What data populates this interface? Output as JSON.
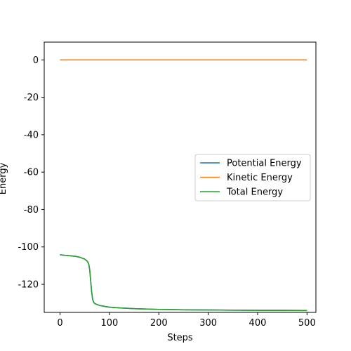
{
  "chart_data": {
    "type": "line",
    "title": "",
    "xlabel": "Steps",
    "ylabel": "Energy",
    "xlim": [
      -32,
      518
    ],
    "ylim": [
      -135,
      9.5
    ],
    "xticks": [
      0,
      100,
      200,
      300,
      400,
      500
    ],
    "yticks": [
      0,
      -20,
      -40,
      -60,
      -80,
      -100,
      -120
    ],
    "grid": false,
    "legend_position": "center-right",
    "series": [
      {
        "name": "Potential Energy",
        "color": "#1f77b4",
        "x": [
          0,
          10,
          20,
          30,
          40,
          50,
          55,
          58,
          60,
          62,
          64,
          66,
          68,
          70,
          75,
          80,
          90,
          100,
          120,
          150,
          200,
          250,
          300,
          350,
          400,
          450,
          500
        ],
        "y": [
          -104.2,
          -104.5,
          -104.7,
          -105.0,
          -105.5,
          -106.5,
          -107.6,
          -109.0,
          -112.0,
          -118.0,
          -124.0,
          -128.0,
          -129.5,
          -130.2,
          -130.8,
          -131.3,
          -131.8,
          -132.2,
          -132.6,
          -133.0,
          -133.4,
          -133.6,
          -133.7,
          -133.8,
          -133.9,
          -133.9,
          -134.0
        ]
      },
      {
        "name": "Kinetic Energy",
        "color": "#ff7f0e",
        "x": [
          0,
          50,
          100,
          150,
          200,
          250,
          300,
          350,
          400,
          450,
          500
        ],
        "y": [
          0,
          0,
          0,
          0,
          0,
          0,
          0,
          0,
          0,
          0,
          0
        ]
      },
      {
        "name": "Total Energy",
        "color": "#2ca02c",
        "x": [
          0,
          10,
          20,
          30,
          40,
          50,
          55,
          58,
          60,
          62,
          64,
          66,
          68,
          70,
          75,
          80,
          90,
          100,
          120,
          150,
          200,
          250,
          300,
          350,
          400,
          450,
          500
        ],
        "y": [
          -104.2,
          -104.5,
          -104.7,
          -105.0,
          -105.5,
          -106.5,
          -107.6,
          -109.0,
          -112.0,
          -118.0,
          -124.0,
          -128.0,
          -129.5,
          -130.2,
          -130.8,
          -131.3,
          -131.8,
          -132.2,
          -132.6,
          -133.0,
          -133.4,
          -133.6,
          -133.7,
          -133.8,
          -133.9,
          -133.9,
          -134.0
        ]
      }
    ]
  }
}
